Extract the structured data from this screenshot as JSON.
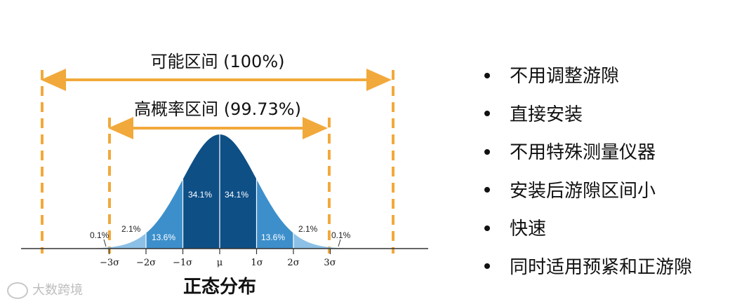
{
  "full_range": {
    "label": "可能区间 (100%)"
  },
  "high_range": {
    "label": "高概率区间 (99.73%)"
  },
  "percentages": {
    "outer_left": "0.1%",
    "left_2": "2.1%",
    "left_13": "13.6%",
    "left_34": "34.1%",
    "right_34": "34.1%",
    "right_13": "13.6%",
    "right_2": "2.1%",
    "outer_right": "0.1%"
  },
  "axis_ticks": [
    "−3σ",
    "−2σ",
    "−1σ",
    "μ",
    "1σ",
    "2σ",
    "3σ"
  ],
  "chart_caption": "正态分布",
  "bullets": [
    "不用调整游隙",
    "直接安装",
    "不用特殊测量仪器",
    "安装后游隙区间小",
    "快速",
    "同时适用预紧和正游隙"
  ],
  "watermark": {
    "text": "大数跨境",
    "icon": "brand-logo-icon"
  },
  "colors": {
    "accent_orange": "#F2A93B",
    "band_center": "#0E4F86",
    "band_mid": "#3C8FCB",
    "band_outer": "#8CC0E6",
    "axis": "#333333"
  }
}
